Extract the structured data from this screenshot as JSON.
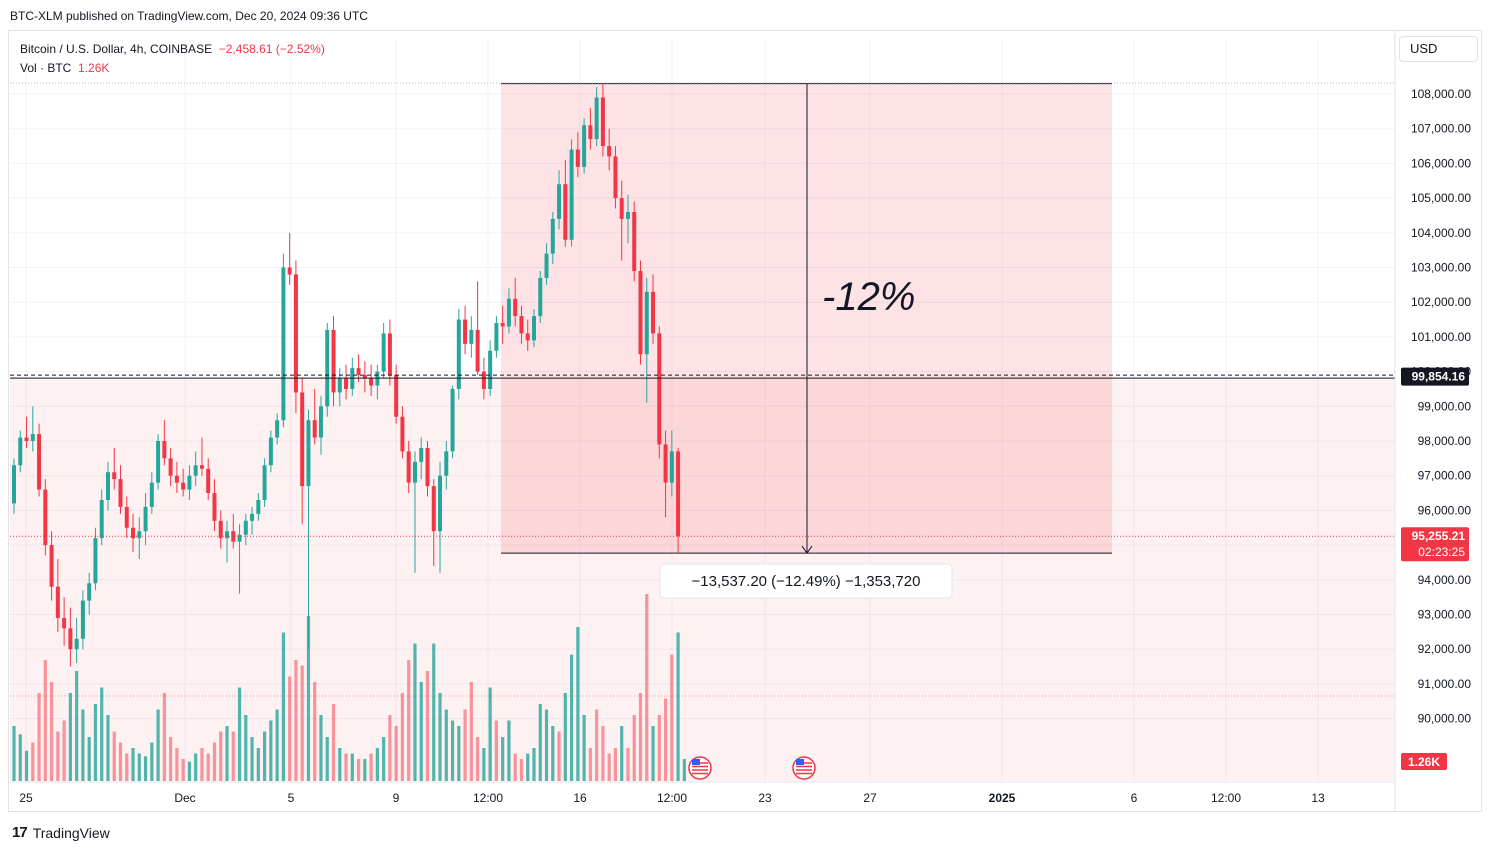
{
  "header": {
    "published": "BTC-XLM published on TradingView.com, Dec 20, 2024 09:36 UTC"
  },
  "legend": {
    "symbol": "Bitcoin / U.S. Dollar, 4h, COINBASE",
    "change": "−2,458.61 (−2.52%)",
    "vol_label": "Vol · BTC",
    "vol_value": "1.26K"
  },
  "currency_button": "USD",
  "footer": {
    "brand": "TradingView"
  },
  "chart_data": {
    "type": "candlestick",
    "y_axis": {
      "range": [
        89300,
        108300
      ],
      "ticks": [
        90000,
        91000,
        92000,
        93000,
        94000,
        95000,
        96000,
        97000,
        98000,
        99000,
        100000,
        101000,
        102000,
        103000,
        104000,
        105000,
        106000,
        107000,
        108000
      ],
      "tick_labels": [
        "90,000.00",
        "91,000.00",
        "92,000.00",
        "93,000.00",
        "94,000.00",
        "",
        "96,000.00",
        "97,000.00",
        "98,000.00",
        "99,000.00",
        "100,000.00",
        "101,000.00",
        "102,000.00",
        "103,000.00",
        "104,000.00",
        "105,000.00",
        "106,000.00",
        "107,000.00",
        "108,000.00"
      ]
    },
    "x_axis": {
      "labels": [
        "25",
        "Dec",
        "5",
        "9",
        "12:00",
        "16",
        "12:00",
        "23",
        "27",
        "2025",
        "6",
        "12:00",
        "13"
      ]
    },
    "reference_line": {
      "value": 99854.16,
      "label": "99,854.16"
    },
    "last_price": {
      "value": 95255.21,
      "label": "95,255.21",
      "countdown": "02:23:25"
    },
    "volume_badge": "1.26K",
    "measure": {
      "from": 108300,
      "to": 94770,
      "label": "−13,537.20 (−12.49%) −1,353,720",
      "annotation": "-12%"
    },
    "candles": [
      [
        96200,
        97500,
        95900,
        97300
      ],
      [
        97300,
        98300,
        97100,
        98100
      ],
      [
        98100,
        98700,
        97800,
        98000
      ],
      [
        98000,
        99000,
        97700,
        98200
      ],
      [
        98200,
        98500,
        96400,
        96600
      ],
      [
        96600,
        96900,
        94700,
        95000
      ],
      [
        95000,
        95400,
        93400,
        93800
      ],
      [
        93800,
        94600,
        92500,
        92900
      ],
      [
        92900,
        93500,
        92100,
        92600
      ],
      [
        92600,
        93200,
        91500,
        92000
      ],
      [
        92000,
        92900,
        91600,
        92300
      ],
      [
        92300,
        93700,
        92000,
        93400
      ],
      [
        93400,
        94200,
        93000,
        93900
      ],
      [
        93900,
        95500,
        93700,
        95200
      ],
      [
        95200,
        96600,
        95000,
        96300
      ],
      [
        96300,
        97400,
        96000,
        97100
      ],
      [
        97100,
        97800,
        96600,
        96900
      ],
      [
        96900,
        97300,
        95900,
        96100
      ],
      [
        96100,
        96400,
        95200,
        95500
      ],
      [
        95500,
        95900,
        94800,
        95200
      ],
      [
        95200,
        95800,
        94600,
        95400
      ],
      [
        95400,
        96500,
        95000,
        96100
      ],
      [
        96100,
        97100,
        95900,
        96800
      ],
      [
        96800,
        98200,
        96600,
        98000
      ],
      [
        98000,
        98600,
        97300,
        97500
      ],
      [
        97500,
        97800,
        96700,
        97000
      ],
      [
        97000,
        97400,
        96500,
        96800
      ],
      [
        96800,
        97200,
        96400,
        96600
      ],
      [
        96600,
        97300,
        96300,
        97000
      ],
      [
        97000,
        97700,
        96700,
        97300
      ],
      [
        97300,
        98100,
        97000,
        97200
      ],
      [
        97200,
        97500,
        96300,
        96500
      ],
      [
        96500,
        96900,
        95400,
        95700
      ],
      [
        95700,
        96000,
        94900,
        95200
      ],
      [
        95200,
        95700,
        94500,
        95400
      ],
      [
        95400,
        95900,
        94900,
        95100
      ],
      [
        95100,
        95600,
        93600,
        95300
      ],
      [
        95300,
        95900,
        95000,
        95700
      ],
      [
        95700,
        96100,
        95300,
        95900
      ],
      [
        95900,
        96500,
        95700,
        96300
      ],
      [
        96300,
        97500,
        96100,
        97300
      ],
      [
        97300,
        98300,
        97100,
        98100
      ],
      [
        98100,
        98800,
        97900,
        98600
      ],
      [
        98600,
        103400,
        98400,
        103000
      ],
      [
        103000,
        104000,
        102500,
        102800
      ],
      [
        102800,
        103200,
        98800,
        99400
      ],
      [
        99400,
        99800,
        95600,
        96700
      ],
      [
        96700,
        98900,
        92000,
        98600
      ],
      [
        98600,
        99500,
        97900,
        98100
      ],
      [
        98100,
        99300,
        97600,
        99000
      ],
      [
        99000,
        101400,
        98700,
        101200
      ],
      [
        101200,
        101600,
        99000,
        99400
      ],
      [
        99400,
        100100,
        99000,
        99800
      ],
      [
        99800,
        100200,
        99200,
        99500
      ],
      [
        99500,
        100400,
        99300,
        100100
      ],
      [
        100100,
        100500,
        99700,
        99900
      ],
      [
        99900,
        100300,
        99400,
        99800
      ],
      [
        99800,
        100200,
        99300,
        99600
      ],
      [
        99600,
        100200,
        99200,
        100000
      ],
      [
        100000,
        101400,
        99800,
        101100
      ],
      [
        101100,
        101500,
        99600,
        99900
      ],
      [
        99900,
        100200,
        98500,
        98700
      ],
      [
        98700,
        99000,
        97500,
        97700
      ],
      [
        97700,
        98000,
        96500,
        96800
      ],
      [
        96800,
        97700,
        94200,
        97400
      ],
      [
        97400,
        98100,
        96900,
        97800
      ],
      [
        97800,
        98000,
        96400,
        96700
      ],
      [
        96700,
        96900,
        94400,
        95400
      ],
      [
        95400,
        97400,
        94200,
        97000
      ],
      [
        97000,
        98000,
        96600,
        97700
      ],
      [
        97700,
        99600,
        97500,
        99500
      ],
      [
        99500,
        101800,
        99200,
        101500
      ],
      [
        101500,
        101900,
        100500,
        100800
      ],
      [
        100800,
        101600,
        100400,
        101200
      ],
      [
        101200,
        102600,
        99900,
        100000
      ],
      [
        100000,
        100400,
        99200,
        99500
      ],
      [
        99500,
        100900,
        99300,
        100600
      ],
      [
        100600,
        101600,
        100400,
        101400
      ],
      [
        101400,
        101900,
        100800,
        101300
      ],
      [
        101300,
        102400,
        101100,
        102100
      ],
      [
        102100,
        102700,
        101300,
        101600
      ],
      [
        101600,
        101900,
        100800,
        101100
      ],
      [
        101100,
        101500,
        100600,
        100900
      ],
      [
        100900,
        101800,
        100700,
        101600
      ],
      [
        101600,
        102900,
        101400,
        102700
      ],
      [
        102700,
        103700,
        102500,
        103400
      ],
      [
        103400,
        104600,
        103100,
        104400
      ],
      [
        104400,
        105800,
        104100,
        105400
      ],
      [
        105400,
        106100,
        103600,
        103800
      ],
      [
        103800,
        106700,
        103600,
        106400
      ],
      [
        106400,
        106900,
        105600,
        105900
      ],
      [
        105900,
        107300,
        105700,
        107100
      ],
      [
        107100,
        107600,
        106400,
        106700
      ],
      [
        106700,
        108200,
        106500,
        107900
      ],
      [
        107900,
        108300,
        106200,
        106500
      ],
      [
        106500,
        107000,
        105800,
        106200
      ],
      [
        106200,
        106500,
        104700,
        105000
      ],
      [
        105000,
        105500,
        103200,
        104400
      ],
      [
        104400,
        105100,
        103700,
        104600
      ],
      [
        104600,
        104900,
        102600,
        102900
      ],
      [
        102900,
        103200,
        100200,
        100500
      ],
      [
        100500,
        102700,
        99100,
        102300
      ],
      [
        102300,
        102800,
        100800,
        101100
      ],
      [
        101100,
        101300,
        97500,
        97900
      ],
      [
        97900,
        98300,
        95800,
        96800
      ],
      [
        96800,
        98300,
        96400,
        97700
      ],
      [
        97700,
        97800,
        94770,
        95255
      ]
    ],
    "volumes": [
      [
        1.0,
        1
      ],
      [
        0.85,
        1
      ],
      [
        0.55,
        1
      ],
      [
        0.7,
        0
      ],
      [
        1.6,
        0
      ],
      [
        2.2,
        0
      ],
      [
        1.8,
        0
      ],
      [
        0.9,
        0
      ],
      [
        1.1,
        0
      ],
      [
        1.6,
        1
      ],
      [
        2.0,
        1
      ],
      [
        1.3,
        1
      ],
      [
        0.8,
        1
      ],
      [
        1.4,
        1
      ],
      [
        1.7,
        1
      ],
      [
        1.2,
        1
      ],
      [
        0.9,
        0
      ],
      [
        0.7,
        0
      ],
      [
        0.5,
        0
      ],
      [
        0.6,
        1
      ],
      [
        0.5,
        1
      ],
      [
        0.45,
        1
      ],
      [
        0.7,
        1
      ],
      [
        1.3,
        1
      ],
      [
        1.6,
        0
      ],
      [
        0.8,
        0
      ],
      [
        0.6,
        0
      ],
      [
        0.4,
        0
      ],
      [
        0.35,
        1
      ],
      [
        0.5,
        1
      ],
      [
        0.6,
        0
      ],
      [
        0.5,
        0
      ],
      [
        0.7,
        0
      ],
      [
        0.9,
        0
      ],
      [
        1.0,
        1
      ],
      [
        0.9,
        0
      ],
      [
        1.7,
        1
      ],
      [
        1.2,
        1
      ],
      [
        0.8,
        1
      ],
      [
        0.6,
        1
      ],
      [
        0.9,
        1
      ],
      [
        1.1,
        1
      ],
      [
        1.3,
        1
      ],
      [
        2.7,
        1
      ],
      [
        1.9,
        0
      ],
      [
        2.2,
        0
      ],
      [
        2.1,
        0
      ],
      [
        3.0,
        1
      ],
      [
        1.8,
        0
      ],
      [
        1.2,
        1
      ],
      [
        0.8,
        1
      ],
      [
        1.4,
        0
      ],
      [
        0.6,
        1
      ],
      [
        0.5,
        0
      ],
      [
        0.5,
        1
      ],
      [
        0.4,
        0
      ],
      [
        0.4,
        1
      ],
      [
        0.5,
        0
      ],
      [
        0.6,
        1
      ],
      [
        0.8,
        1
      ],
      [
        1.2,
        0
      ],
      [
        1.0,
        0
      ],
      [
        1.6,
        0
      ],
      [
        2.2,
        0
      ],
      [
        2.5,
        1
      ],
      [
        1.8,
        1
      ],
      [
        2.0,
        0
      ],
      [
        2.5,
        1
      ],
      [
        1.6,
        1
      ],
      [
        1.3,
        1
      ],
      [
        1.1,
        1
      ],
      [
        1.0,
        1
      ],
      [
        1.3,
        0
      ],
      [
        1.8,
        0
      ],
      [
        0.8,
        0
      ],
      [
        0.6,
        1
      ],
      [
        1.7,
        1
      ],
      [
        1.1,
        0
      ],
      [
        0.8,
        1
      ],
      [
        1.1,
        1
      ],
      [
        0.5,
        0
      ],
      [
        0.4,
        0
      ],
      [
        0.5,
        1
      ],
      [
        0.6,
        1
      ],
      [
        1.4,
        1
      ],
      [
        1.3,
        1
      ],
      [
        1.0,
        1
      ],
      [
        0.9,
        0
      ],
      [
        1.6,
        1
      ],
      [
        2.3,
        1
      ],
      [
        2.8,
        1
      ],
      [
        1.2,
        1
      ],
      [
        0.6,
        0
      ],
      [
        1.3,
        0
      ],
      [
        1.0,
        0
      ],
      [
        0.5,
        0
      ],
      [
        0.6,
        0
      ],
      [
        1.0,
        1
      ],
      [
        0.6,
        0
      ],
      [
        1.2,
        0
      ],
      [
        1.6,
        0
      ],
      [
        3.4,
        0
      ],
      [
        1.0,
        1
      ],
      [
        1.2,
        0
      ],
      [
        1.5,
        0
      ],
      [
        2.3,
        0
      ],
      [
        2.7,
        1
      ],
      [
        0.4,
        1
      ]
    ]
  }
}
